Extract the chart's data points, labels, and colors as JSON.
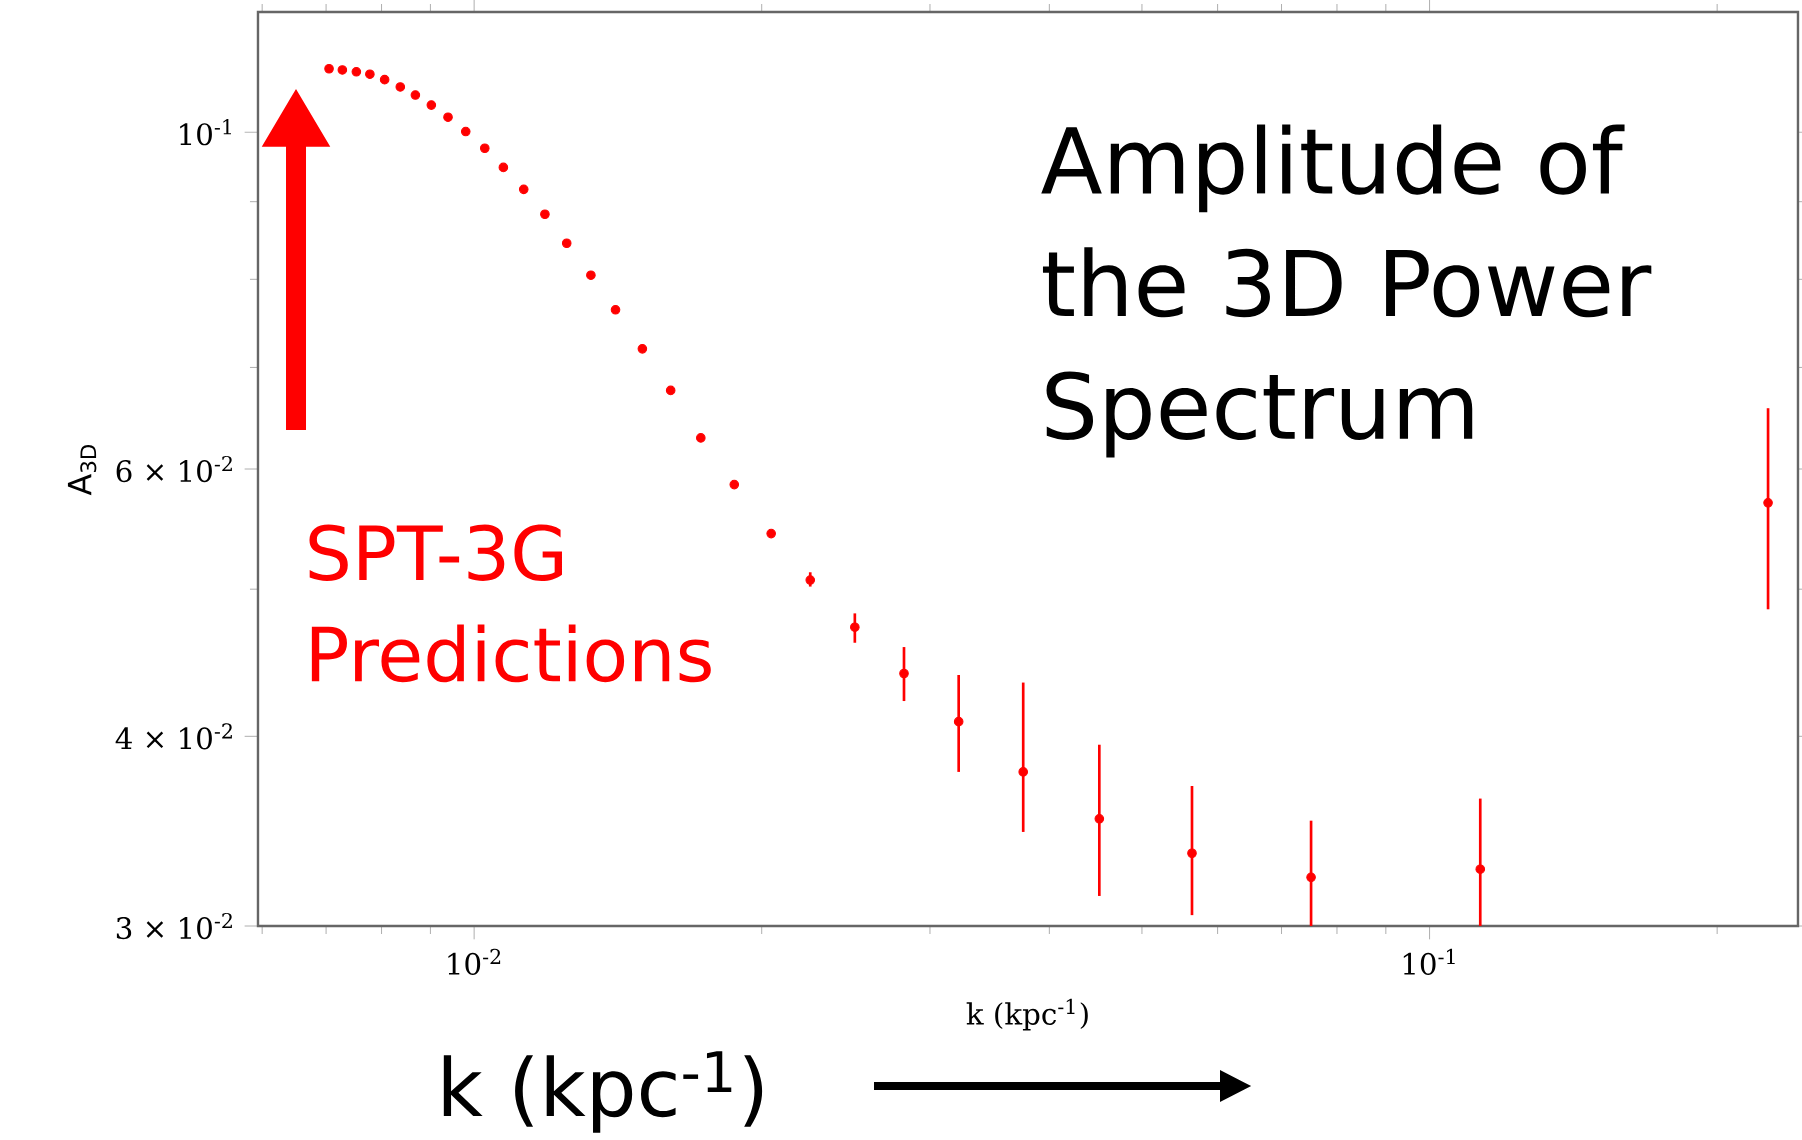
{
  "chart_data": {
    "type": "scatter",
    "xlabel": "k (kpc$^{-1}$)",
    "ylabel": "A$_{3D}$",
    "annotations": [
      "Amplitude of the 3D Power Spectrum",
      "SPT-3G Predictions",
      "k (kpc$^{-1}$)"
    ],
    "log": "xy",
    "marker": "circle",
    "legend": false,
    "grid": false,
    "xlim": [
      0.00594,
      0.243
    ],
    "ylim": [
      0.03,
      0.12
    ],
    "xticks": [
      {
        "value": 0.01,
        "label": "10$^{-2}$"
      },
      {
        "value": 0.1,
        "label": "10$^{-1}$"
      }
    ],
    "yticks": [
      {
        "value": 0.03,
        "label": "3 × 10$^{-2}$"
      },
      {
        "value": 0.04,
        "label": "4 × 10$^{-2}$"
      },
      {
        "value": 0.06,
        "label": "6 × 10$^{-2}$"
      },
      {
        "value": 0.1,
        "label": "10$^{-1}$"
      }
    ],
    "x": [
      0.00705,
      0.00728,
      0.00753,
      0.00778,
      0.00806,
      0.00837,
      0.00868,
      0.00902,
      0.00939,
      0.0098,
      0.01026,
      0.01073,
      0.01127,
      0.01186,
      0.0125,
      0.01325,
      0.01406,
      0.015,
      0.01606,
      0.01727,
      0.01872,
      0.02046,
      0.02248,
      0.02503,
      0.02818,
      0.03215,
      0.03756,
      0.04512,
      0.05641,
      0.07516,
      0.113,
      0.2261
    ],
    "series": [
      {
        "color": "#ff0000",
        "values": [
          0.1101,
          0.1099,
          0.1096,
          0.1092,
          0.1083,
          0.1071,
          0.1058,
          0.1042,
          0.1023,
          0.1001,
          0.0976,
          0.0948,
          0.0917,
          0.0883,
          0.0845,
          0.0805,
          0.0764,
          0.072,
          0.0676,
          0.0629,
          0.0586,
          0.0544,
          0.0507,
          0.0472,
          0.044,
          0.0409,
          0.0379,
          0.0353,
          0.0335,
          0.0323,
          0.0327,
          0.057
        ],
        "errors": [
          null,
          null,
          null,
          null,
          null,
          null,
          null,
          null,
          null,
          null,
          null,
          null,
          null,
          null,
          null,
          null,
          null,
          null,
          null,
          null,
          null,
          null,
          [
            0.0502,
            0.0513
          ],
          [
            0.0461,
            0.0482
          ],
          [
            0.0422,
            0.0458
          ],
          [
            0.0379,
            0.0439
          ],
          [
            0.0346,
            0.0434
          ],
          [
            0.0314,
            0.0395
          ],
          [
            0.0305,
            0.0371
          ],
          [
            0.03,
            0.0352
          ],
          [
            0.03,
            0.0364
          ],
          [
            0.0485,
            0.0658
          ]
        ]
      }
    ]
  }
}
